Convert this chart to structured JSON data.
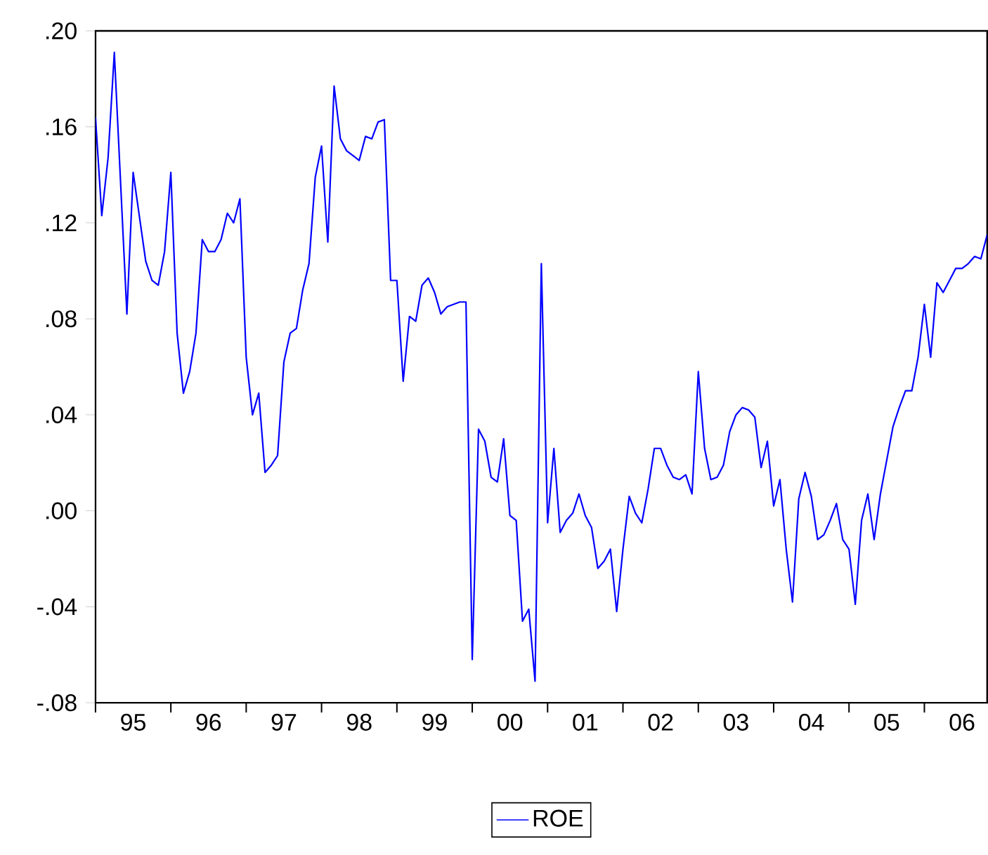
{
  "chart_data": {
    "type": "line",
    "x": [
      "1995-01",
      "1995-02",
      "1995-03",
      "1995-04",
      "1995-06",
      "1995-07",
      "1995-09",
      "1995-10",
      "1995-11",
      "1995-12",
      "1996-01",
      "1996-02",
      "1996-03",
      "1996-04",
      "1996-05",
      "1996-06",
      "1996-07",
      "1996-08",
      "1996-09",
      "1996-10",
      "1996-11",
      "1996-12",
      "1997-01",
      "1997-02",
      "1997-03",
      "1997-04",
      "1997-05",
      "1997-06",
      "1997-07",
      "1997-08",
      "1997-09",
      "1997-10",
      "1997-11",
      "1997-12",
      "1998-01",
      "1998-02",
      "1998-03",
      "1998-04",
      "1998-05",
      "1998-06",
      "1998-07",
      "1998-08",
      "1998-09",
      "1998-10",
      "1998-11",
      "1998-12",
      "1999-01",
      "1999-02",
      "1999-03",
      "1999-04",
      "1999-05",
      "1999-06",
      "1999-07",
      "1999-08",
      "1999-09",
      "1999-10",
      "1999-11",
      "1999-12",
      "2000-01",
      "2000-02",
      "2000-03",
      "2000-04",
      "2000-05",
      "2000-06",
      "2000-07",
      "2000-08",
      "2000-09",
      "2000-10",
      "2000-11",
      "2000-12",
      "2001-01",
      "2001-02",
      "2001-03",
      "2001-04",
      "2001-05",
      "2001-06",
      "2001-07",
      "2001-08",
      "2001-09",
      "2001-10",
      "2001-11",
      "2001-12",
      "2002-01",
      "2002-02",
      "2002-03",
      "2002-04",
      "2002-05",
      "2002-06",
      "2002-07",
      "2002-08",
      "2002-09",
      "2002-10",
      "2002-11",
      "2002-12",
      "2003-01",
      "2003-02",
      "2003-03",
      "2003-04",
      "2003-05",
      "2003-06",
      "2003-07",
      "2003-08",
      "2003-09",
      "2003-10",
      "2003-11",
      "2003-12",
      "2004-01",
      "2004-02",
      "2004-03",
      "2004-04",
      "2004-05",
      "2004-06",
      "2004-07",
      "2004-08",
      "2004-09",
      "2004-10",
      "2004-11",
      "2004-12",
      "2005-01",
      "2005-02",
      "2005-03",
      "2005-04",
      "2005-05",
      "2005-06",
      "2005-07",
      "2005-08",
      "2005-09",
      "2005-10",
      "2005-11",
      "2005-12",
      "2006-01",
      "2006-02",
      "2006-03",
      "2006-04",
      "2006-05",
      "2006-06",
      "2006-07",
      "2006-08",
      "2006-09",
      "2006-10",
      "2006-11"
    ],
    "series": [
      {
        "name": "ROE",
        "color": "#0000ff",
        "values": [
          0.164,
          0.123,
          0.147,
          0.191,
          0.082,
          0.141,
          0.104,
          0.096,
          0.094,
          0.108,
          0.141,
          0.074,
          0.049,
          0.058,
          0.074,
          0.113,
          0.108,
          0.108,
          0.113,
          0.124,
          0.12,
          0.13,
          0.064,
          0.04,
          0.049,
          0.016,
          0.019,
          0.023,
          0.062,
          0.074,
          0.076,
          0.092,
          0.103,
          0.139,
          0.152,
          0.112,
          0.177,
          0.155,
          0.15,
          0.148,
          0.146,
          0.156,
          0.155,
          0.162,
          0.163,
          0.096,
          0.096,
          0.054,
          0.081,
          0.079,
          0.094,
          0.097,
          0.091,
          0.082,
          0.085,
          0.086,
          0.087,
          0.087,
          -0.062,
          0.034,
          0.029,
          0.014,
          0.012,
          0.03,
          -0.002,
          -0.004,
          -0.046,
          -0.041,
          -0.071,
          0.103,
          -0.005,
          0.026,
          -0.009,
          -0.004,
          -0.001,
          0.007,
          -0.002,
          -0.007,
          -0.024,
          -0.021,
          -0.016,
          -0.042,
          -0.016,
          0.006,
          -0.001,
          -0.005,
          0.009,
          0.026,
          0.026,
          0.019,
          0.014,
          0.013,
          0.015,
          0.007,
          0.058,
          0.026,
          0.013,
          0.014,
          0.019,
          0.033,
          0.04,
          0.043,
          0.042,
          0.039,
          0.018,
          0.029,
          0.002,
          0.013,
          -0.016,
          -0.038,
          0.005,
          0.016,
          0.006,
          -0.012,
          -0.01,
          -0.004,
          0.003,
          -0.012,
          -0.016,
          -0.039,
          -0.004,
          0.007,
          -0.012,
          0.007,
          0.021,
          0.035,
          0.043,
          0.05,
          0.05,
          0.064,
          0.086,
          0.064,
          0.095,
          0.091,
          0.096,
          0.101,
          0.101,
          0.103,
          0.106,
          0.105,
          0.115
        ]
      }
    ],
    "xlim": [
      "1995-01",
      "2006-11"
    ],
    "xticks": [
      {
        "value": "1995-01",
        "label": null
      },
      {
        "value": "1995-07",
        "label": "95"
      },
      {
        "value": "1996-01",
        "label": null
      },
      {
        "value": "1996-07",
        "label": "96"
      },
      {
        "value": "1997-01",
        "label": null
      },
      {
        "value": "1997-07",
        "label": "97"
      },
      {
        "value": "1998-01",
        "label": null
      },
      {
        "value": "1998-07",
        "label": "98"
      },
      {
        "value": "1999-01",
        "label": null
      },
      {
        "value": "1999-07",
        "label": "99"
      },
      {
        "value": "2000-01",
        "label": null
      },
      {
        "value": "2000-07",
        "label": "00"
      },
      {
        "value": "2001-01",
        "label": null
      },
      {
        "value": "2001-07",
        "label": "01"
      },
      {
        "value": "2002-01",
        "label": null
      },
      {
        "value": "2002-07",
        "label": "02"
      },
      {
        "value": "2003-01",
        "label": null
      },
      {
        "value": "2003-07",
        "label": "03"
      },
      {
        "value": "2004-01",
        "label": null
      },
      {
        "value": "2004-07",
        "label": "04"
      },
      {
        "value": "2005-01",
        "label": null
      },
      {
        "value": "2005-07",
        "label": "05"
      },
      {
        "value": "2006-01",
        "label": null
      },
      {
        "value": "2006-07",
        "label": "06"
      }
    ],
    "ylim": [
      -0.08,
      0.2
    ],
    "yticks": [
      {
        "value": -0.08,
        "label": "-.08"
      },
      {
        "value": -0.04,
        "label": "-.04"
      },
      {
        "value": 0.0,
        "label": ".00"
      },
      {
        "value": 0.04,
        "label": ".04"
      },
      {
        "value": 0.08,
        "label": ".08"
      },
      {
        "value": 0.12,
        "label": ".12"
      },
      {
        "value": 0.16,
        "label": ".16"
      },
      {
        "value": 0.2,
        "label": ".20"
      }
    ],
    "legend": "bottom",
    "grid": false,
    "marker": "none",
    "line_style": "solid"
  }
}
